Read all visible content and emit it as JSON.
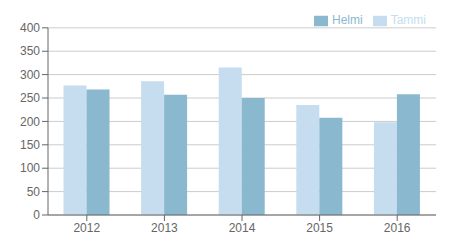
{
  "chart_data": {
    "type": "bar",
    "categories": [
      "2012",
      "2013",
      "2014",
      "2015",
      "2016"
    ],
    "series": [
      {
        "name": "Tammi",
        "color": "#c5ddef",
        "values": [
          277,
          286,
          315,
          235,
          198
        ]
      },
      {
        "name": "Helmi",
        "color": "#89b8cf",
        "values": [
          268,
          257,
          250,
          208,
          258
        ]
      }
    ],
    "ylim": [
      0,
      400
    ],
    "yticks": [
      0,
      50,
      100,
      150,
      200,
      250,
      300,
      350,
      400
    ],
    "grid": true,
    "legend": "upper right"
  }
}
